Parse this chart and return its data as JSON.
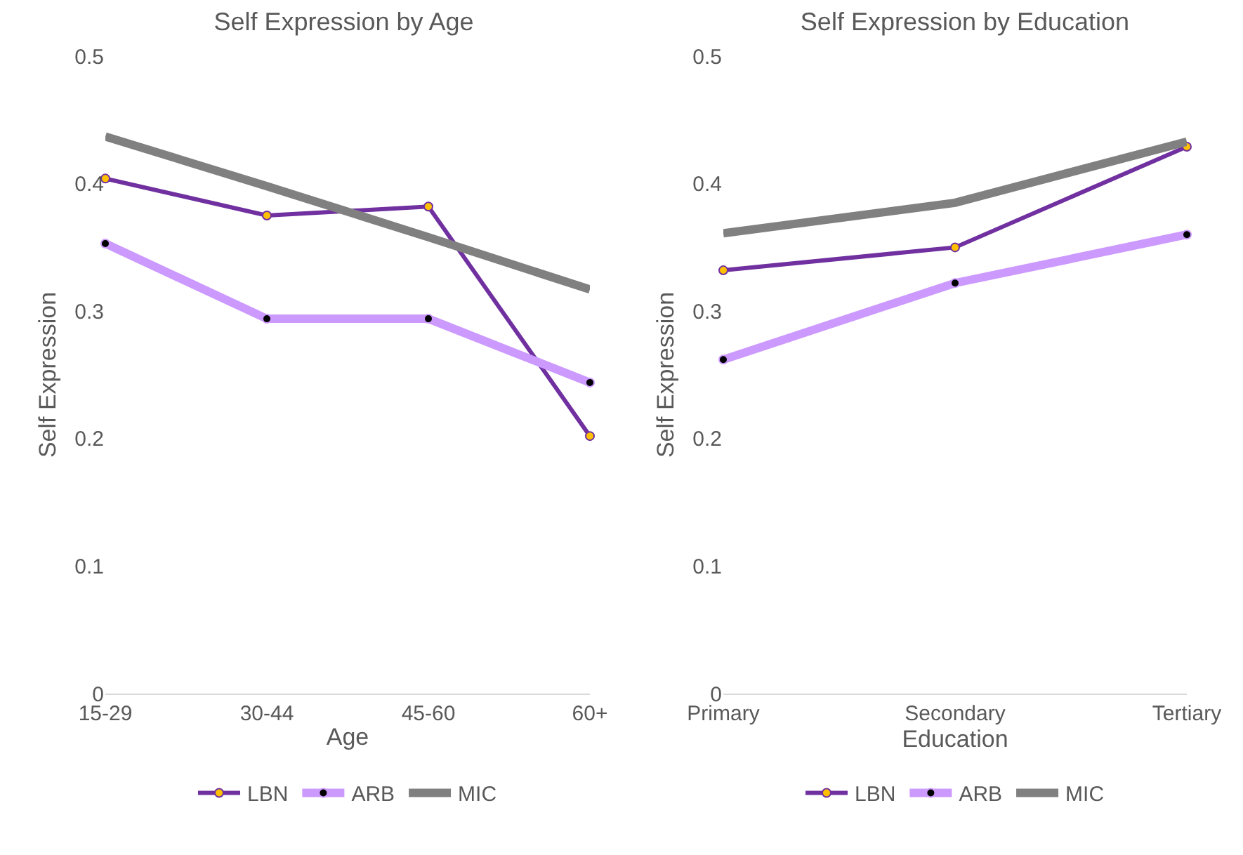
{
  "chart_data": [
    {
      "type": "line",
      "title": "Self Expression by Age",
      "xlabel": "Age",
      "ylabel": "Self Expression",
      "categories": [
        "15-29",
        "30-44",
        "45-60",
        "60+"
      ],
      "ylim": [
        0,
        0.5
      ],
      "yticks": [
        0,
        0.1,
        0.2,
        0.3,
        0.4,
        0.5
      ],
      "legend": "bottom",
      "series": [
        {
          "name": "LBN",
          "color": "#7030a0",
          "marker": "circle",
          "values": [
            0.404,
            0.375,
            0.382,
            0.202
          ]
        },
        {
          "name": "ARB",
          "color": "#cc99ff",
          "marker": "circle",
          "values": [
            0.353,
            0.294,
            0.294,
            0.244
          ]
        },
        {
          "name": "MIC",
          "color": "#808080",
          "marker": "none",
          "values": [
            0.437,
            0.398,
            0.358,
            0.317
          ]
        }
      ]
    },
    {
      "type": "line",
      "title": "Self Expression by Education",
      "xlabel": "Education",
      "ylabel": "Self Expression",
      "categories": [
        "Primary",
        "Secondary",
        "Tertiary"
      ],
      "ylim": [
        0,
        0.5
      ],
      "yticks": [
        0,
        0.1,
        0.2,
        0.3,
        0.4,
        0.5
      ],
      "legend": "bottom",
      "series": [
        {
          "name": "LBN",
          "color": "#7030a0",
          "marker": "circle",
          "values": [
            0.332,
            0.35,
            0.429
          ]
        },
        {
          "name": "ARB",
          "color": "#cc99ff",
          "marker": "circle",
          "values": [
            0.262,
            0.322,
            0.36
          ]
        },
        {
          "name": "MIC",
          "color": "#808080",
          "marker": "none",
          "values": [
            0.361,
            0.385,
            0.433
          ]
        }
      ]
    }
  ]
}
